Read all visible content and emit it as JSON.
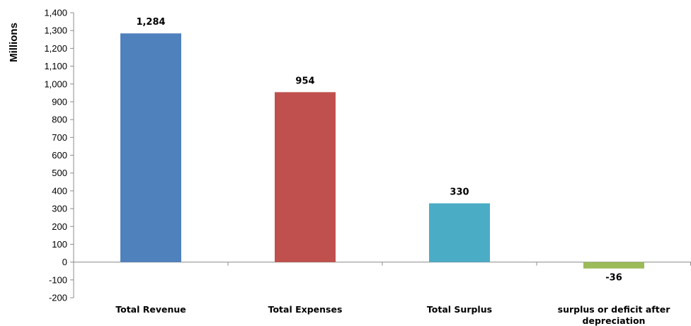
{
  "chart_data": {
    "type": "bar",
    "title": "",
    "xlabel": "",
    "ylabel": "Millions",
    "ylim": [
      -200,
      1400
    ],
    "ytick_step": 100,
    "yticks": [
      "-200",
      "-100",
      "0",
      "100",
      "200",
      "300",
      "400",
      "500",
      "600",
      "700",
      "800",
      "900",
      "1,000",
      "1,100",
      "1,200",
      "1,300",
      "1,400"
    ],
    "categories": [
      [
        "Total Revenue"
      ],
      [
        "Total Expenses"
      ],
      [
        "Total Surplus"
      ],
      [
        "surplus or deficit after",
        "depreciation"
      ]
    ],
    "values": [
      1284,
      954,
      330,
      -36
    ],
    "data_labels": [
      "1,284",
      "954",
      "330",
      "-36"
    ],
    "colors": [
      "#4f81bd",
      "#c0504d",
      "#4bacc6",
      "#9bbb59"
    ],
    "grid": false,
    "legend": "none"
  }
}
